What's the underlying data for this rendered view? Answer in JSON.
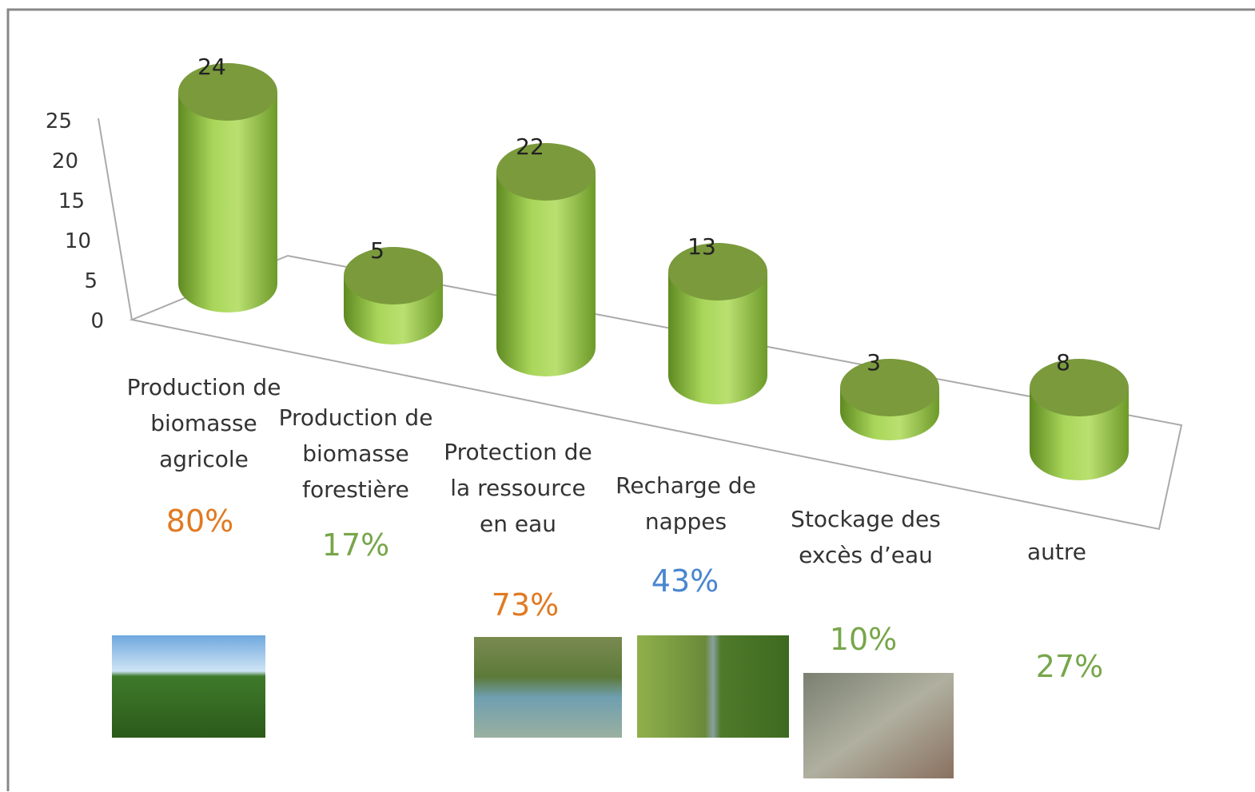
{
  "chart_data": {
    "type": "bar3d",
    "categories": [
      "Production de biomasse agricole",
      "Production de biomasse forestière",
      "Protection de la ressource en eau",
      "Recharge de nappes",
      "Stockage des excès d’eau",
      "autre"
    ],
    "values": [
      24,
      5,
      22,
      13,
      3,
      8
    ],
    "color": "#8fbf3f",
    "ylim": [
      0,
      25
    ],
    "yticks": [
      0,
      5,
      10,
      15,
      20,
      25
    ],
    "grid": false,
    "annotations": [
      {
        "text": "80%",
        "color": "#e07a22"
      },
      {
        "text": "17%",
        "color": "#77a64a"
      },
      {
        "text": "73%",
        "color": "#e07a22"
      },
      {
        "text": "43%",
        "color": "#4a86d0"
      },
      {
        "text": "10%",
        "color": "#77a64a"
      },
      {
        "text": "27%",
        "color": "#77a64a"
      }
    ]
  }
}
